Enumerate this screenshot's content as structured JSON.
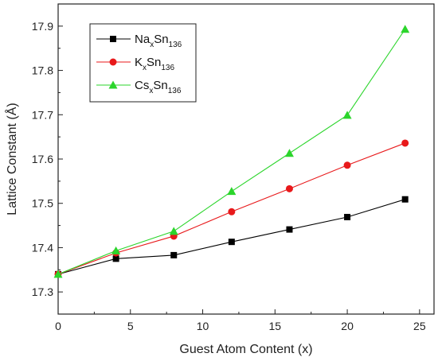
{
  "chart_data": {
    "type": "line",
    "xlabel": "Guest Atom Content (x)",
    "ylabel": "Lattice Constant (Å)",
    "xlim": [
      0,
      26
    ],
    "ylim": [
      17.25,
      17.95
    ],
    "xticks": [
      0,
      5,
      10,
      15,
      20,
      25
    ],
    "yticks": [
      17.3,
      17.4,
      17.5,
      17.6,
      17.7,
      17.8,
      17.9
    ],
    "xtick_labels": [
      "0",
      "5",
      "10",
      "15",
      "20",
      "25"
    ],
    "ytick_labels": [
      "17.3",
      "17.4",
      "17.5",
      "17.6",
      "17.7",
      "17.8",
      "17.9"
    ],
    "x": [
      0,
      4,
      8,
      12,
      16,
      20,
      24
    ],
    "legend_position": "top-left",
    "series": [
      {
        "name": "NaxSn136",
        "label_main": "Na",
        "label_sub1": "x",
        "label_mid": "Sn",
        "label_sub2": "136",
        "marker": "square",
        "color": "#000000",
        "values": [
          17.34,
          17.375,
          17.383,
          17.413,
          17.441,
          17.469,
          17.509
        ]
      },
      {
        "name": "KxSn136",
        "label_main": "K",
        "label_sub1": "x",
        "label_mid": "Sn",
        "label_sub2": "136",
        "marker": "circle",
        "color": "#e8191b",
        "values": [
          17.34,
          17.388,
          17.426,
          17.481,
          17.533,
          17.586,
          17.636
        ]
      },
      {
        "name": "CsxSn136",
        "label_main": "Cs",
        "label_sub1": "x",
        "label_mid": "Sn",
        "label_sub2": "136",
        "marker": "triangle",
        "color": "#2bd52b",
        "values": [
          17.34,
          17.393,
          17.437,
          17.527,
          17.613,
          17.699,
          17.893
        ]
      }
    ]
  }
}
